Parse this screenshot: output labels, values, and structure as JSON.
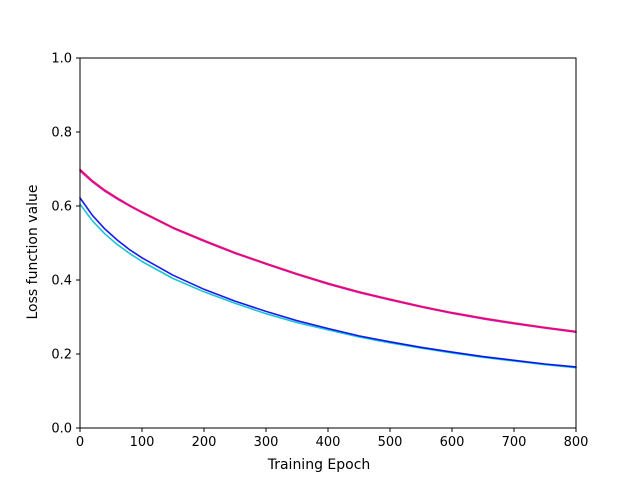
{
  "chart_data": {
    "type": "line",
    "title": "",
    "xlabel": "Training Epoch",
    "ylabel": "Loss function value",
    "xlim": [
      0,
      800
    ],
    "ylim": [
      0.0,
      1.0
    ],
    "xticks": [
      "0",
      "100",
      "200",
      "300",
      "400",
      "500",
      "600",
      "700",
      "800"
    ],
    "yticks": [
      "0.0",
      "0.2",
      "0.4",
      "0.6",
      "0.8",
      "1.0"
    ],
    "grid": false,
    "legend": "none",
    "x": [
      0,
      20,
      40,
      60,
      80,
      100,
      150,
      200,
      250,
      300,
      350,
      400,
      450,
      500,
      550,
      600,
      650,
      700,
      750,
      800
    ],
    "series": [
      {
        "color": "#cc00cc",
        "values": [
          0.695,
          0.665,
          0.64,
          0.619,
          0.6,
          0.582,
          0.54,
          0.505,
          0.472,
          0.443,
          0.415,
          0.389,
          0.366,
          0.346,
          0.327,
          0.31,
          0.295,
          0.282,
          0.27,
          0.259
        ]
      },
      {
        "color": "#e8005a",
        "values": [
          0.699,
          0.668,
          0.643,
          0.622,
          0.602,
          0.584,
          0.542,
          0.507,
          0.474,
          0.445,
          0.417,
          0.391,
          0.368,
          0.348,
          0.329,
          0.312,
          0.297,
          0.284,
          0.272,
          0.261
        ]
      },
      {
        "color": "#00bfd0",
        "values": [
          0.605,
          0.56,
          0.525,
          0.496,
          0.472,
          0.45,
          0.404,
          0.368,
          0.337,
          0.309,
          0.285,
          0.265,
          0.246,
          0.23,
          0.216,
          0.203,
          0.191,
          0.181,
          0.171,
          0.163
        ]
      },
      {
        "color": "#0000ee",
        "values": [
          0.622,
          0.575,
          0.538,
          0.508,
          0.482,
          0.46,
          0.413,
          0.375,
          0.343,
          0.315,
          0.29,
          0.269,
          0.249,
          0.233,
          0.218,
          0.205,
          0.193,
          0.183,
          0.173,
          0.165
        ]
      }
    ]
  }
}
